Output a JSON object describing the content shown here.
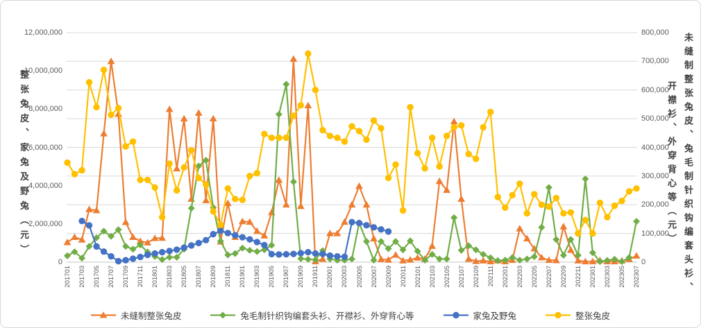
{
  "chart_data": {
    "type": "line",
    "x": [
      "201701",
      "201702",
      "201703",
      "201704",
      "201705",
      "201706",
      "201707",
      "201708",
      "201709",
      "201710",
      "201711",
      "201712",
      "201801",
      "201802",
      "201803",
      "201804",
      "201805",
      "201806",
      "201807",
      "201808",
      "201809",
      "201810",
      "201811",
      "201812",
      "201901",
      "201902",
      "201903",
      "201904",
      "201905",
      "201906",
      "201907",
      "201908",
      "201909",
      "201910",
      "201911",
      "201912",
      "202001",
      "202002",
      "202003",
      "202004",
      "202005",
      "202006",
      "202007",
      "202008",
      "202009",
      "202010",
      "202011",
      "202012",
      "202101",
      "202102",
      "202103",
      "202104",
      "202105",
      "202106",
      "202107",
      "202108",
      "202109",
      "202110",
      "202111",
      "202112",
      "202201",
      "202202",
      "202203",
      "202204",
      "202205",
      "202206",
      "202207",
      "202208",
      "202209",
      "202210",
      "202211",
      "202212",
      "202301",
      "202302",
      "202303",
      "202304",
      "202305",
      "202306",
      "202307"
    ],
    "x_tick_every": 2,
    "grid": true,
    "gridline_color": "#d9d9d9",
    "axis_line_color": "#c6c6c6",
    "tick_label_color": "#595959",
    "left_axis": {
      "title": "整张兔皮、家兔及野兔（元）",
      "min": 0,
      "max": 12000000,
      "step": 2000000,
      "tick_labels": [
        "0",
        "2,000,000",
        "4,000,000",
        "6,000,000",
        "8,000,000",
        "10,000,000",
        "12,000,000"
      ]
    },
    "right_axis": {
      "title_lines": [
        "未缝制整张兔皮、兔毛制针织钩编套头衫、",
        "开襟衫、外穿背心等（元）"
      ],
      "min": 0,
      "max": 800000,
      "step": 100000,
      "tick_labels": [
        "0",
        "100,000",
        "200,000",
        "300,000",
        "400,000",
        "500,000",
        "600,000",
        "700,000",
        "800,000"
      ]
    },
    "legend_position": "bottom",
    "series": [
      {
        "name": "未缝制整张兔皮",
        "color": "#ED7D31",
        "marker": "triangle",
        "axis": "right",
        "values": [
          69000,
          87000,
          78000,
          184000,
          180000,
          448000,
          700000,
          516000,
          139000,
          87000,
          73000,
          68000,
          83000,
          84000,
          533000,
          326000,
          500000,
          220000,
          520000,
          215000,
          500000,
          71000,
          205000,
          87000,
          142000,
          140000,
          108000,
          92000,
          173000,
          286000,
          200000,
          708000,
          195000,
          546000,
          2000,
          11000,
          100000,
          100000,
          140000,
          200000,
          265000,
          200000,
          82000,
          10000,
          8000,
          25000,
          5000,
          8000,
          15000,
          11000,
          56000,
          282000,
          251000,
          490000,
          220000,
          11000,
          3000,
          5000,
          2000,
          5000,
          2000,
          7000,
          117000,
          82000,
          47000,
          16000,
          7000,
          6000,
          124000,
          42000,
          5000,
          2000,
          2000,
          6000,
          2000,
          2000,
          5000,
          10000,
          22000
        ]
      },
      {
        "name": "兔毛制针织钩编套头衫、开襟衫、外穿背心等",
        "color": "#70AD47",
        "marker": "diamond",
        "axis": "right",
        "values": [
          22000,
          36000,
          14000,
          55000,
          85000,
          108000,
          90000,
          113000,
          55000,
          45000,
          60000,
          35000,
          20000,
          9000,
          17000,
          17000,
          45000,
          188000,
          335000,
          355000,
          190000,
          73000,
          25000,
          30000,
          49000,
          41000,
          37000,
          43000,
          59000,
          515000,
          620000,
          280000,
          12000,
          10000,
          8000,
          40000,
          11000,
          7000,
          7000,
          11000,
          137000,
          72000,
          7000,
          72000,
          47000,
          72000,
          43000,
          74000,
          38000,
          7000,
          27000,
          11000,
          11000,
          155000,
          41000,
          57000,
          43000,
          27000,
          15000,
          5000,
          7000,
          16000,
          7000,
          11000,
          19000,
          121000,
          260000,
          79000,
          24000,
          79000,
          24000,
          290000,
          33000,
          2000,
          6000,
          10000,
          2000,
          16000,
          142000
        ]
      },
      {
        "name": "家兔及野兔",
        "color": "#4472C4",
        "marker": "circle",
        "axis": "left",
        "values": [
          null,
          null,
          2150000,
          1920000,
          820000,
          550000,
          300000,
          50000,
          100000,
          180000,
          270000,
          380000,
          450000,
          520000,
          580000,
          650000,
          760000,
          870000,
          1000000,
          1150000,
          1460000,
          1640000,
          1520000,
          1400000,
          1300000,
          1190000,
          1050000,
          890000,
          420000,
          400000,
          410000,
          430000,
          470000,
          520000,
          450000,
          430000,
          340000,
          300000,
          280000,
          2090000,
          2040000,
          1930000,
          1820000,
          1710000,
          1600000,
          null,
          null,
          null,
          null,
          null,
          null,
          null,
          null,
          null,
          null,
          null,
          null,
          null,
          null,
          null,
          null,
          null,
          null,
          null,
          null,
          null,
          null,
          null,
          null,
          null,
          null,
          null,
          null,
          null,
          null,
          null,
          null,
          null,
          null
        ]
      },
      {
        "name": "整张兔皮",
        "color": "#FFC000",
        "marker": "circle",
        "axis": "left",
        "values": [
          5200000,
          4600000,
          4800000,
          9400000,
          8100000,
          10050000,
          7700000,
          8050000,
          6050000,
          6300000,
          4300000,
          4300000,
          3900000,
          2350000,
          5150000,
          3750000,
          4950000,
          5850000,
          4400000,
          4050000,
          2650000,
          1950000,
          3850000,
          3300000,
          3250000,
          4500000,
          4650000,
          6700000,
          6500000,
          6500000,
          6500000,
          7650000,
          8200000,
          10900000,
          9000000,
          6900000,
          6600000,
          6500000,
          6300000,
          7100000,
          6850000,
          6400000,
          7400000,
          7000000,
          4400000,
          5100000,
          2700000,
          8100000,
          5700000,
          4900000,
          6500000,
          5000000,
          6600000,
          7050000,
          7150000,
          5650000,
          5400000,
          7050000,
          7850000,
          3400000,
          2850000,
          3500000,
          4100000,
          2550000,
          3550000,
          3000000,
          2900000,
          3350000,
          2550000,
          2600000,
          1500000,
          2200000,
          1500000,
          3100000,
          2350000,
          2950000,
          3200000,
          3700000,
          3850000
        ]
      }
    ]
  }
}
